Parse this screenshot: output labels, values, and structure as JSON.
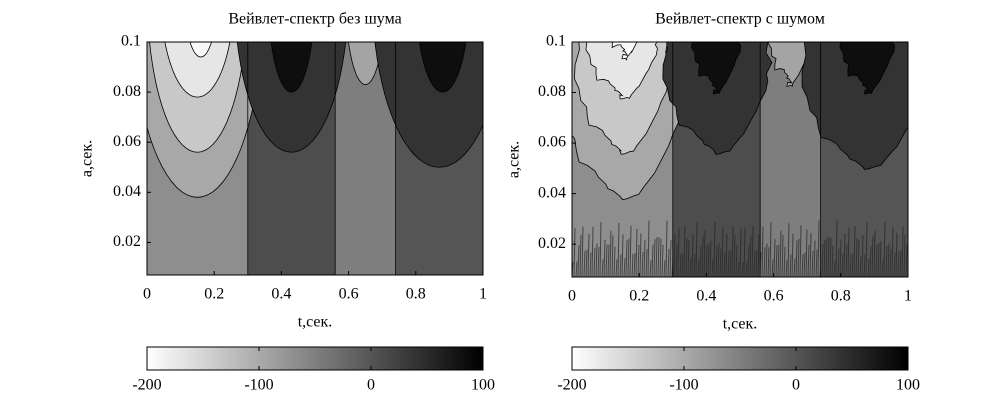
{
  "chart_data": [
    {
      "type": "contour",
      "title": "Вейвлет-спектр без шума",
      "xlabel": "t,сек.",
      "ylabel": "a,сек.",
      "xlim": [
        0,
        1
      ],
      "ylim": [
        0.007,
        0.1
      ],
      "xticks": [
        0,
        0.2,
        0.4,
        0.6,
        0.8,
        1
      ],
      "yticks": [
        0.02,
        0.04,
        0.06,
        0.08,
        0.1
      ],
      "colorbar": {
        "clim": [
          -200,
          100
        ],
        "ticks": [
          -200,
          -100,
          0,
          100
        ]
      }
    },
    {
      "type": "contour",
      "title": "Вейвлет-спектр с шумом",
      "xlabel": "t,сек.",
      "ylabel": "a,сек.",
      "xlim": [
        0,
        1
      ],
      "ylim": [
        0.007,
        0.1
      ],
      "xticks": [
        0,
        0.2,
        0.4,
        0.6,
        0.8,
        1
      ],
      "yticks": [
        0.02,
        0.04,
        0.06,
        0.08,
        0.1
      ],
      "colorbar": {
        "clim": [
          -200,
          100
        ],
        "ticks": [
          -200,
          -100,
          0,
          100
        ]
      }
    }
  ]
}
